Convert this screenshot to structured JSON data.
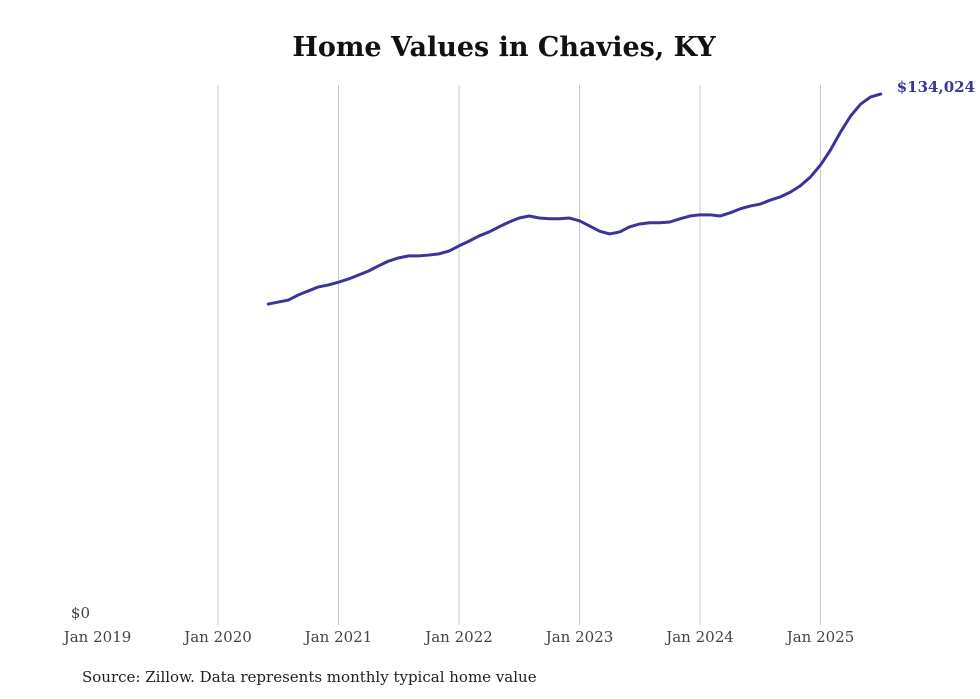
{
  "chart_data": {
    "type": "line",
    "title": "Home Values in Chavies, KY",
    "xlabel": "",
    "ylabel": "",
    "x_ticks": [
      "Jan 2019",
      "Jan 2020",
      "Jan 2021",
      "Jan 2022",
      "Jan 2023",
      "Jan 2024",
      "Jan 2025"
    ],
    "y_ticks": [
      "$0"
    ],
    "ylim": [
      0,
      134024
    ],
    "grid": "vertical",
    "end_label": "$134,024",
    "line_color": "#3b3499",
    "series": [
      {
        "name": "Typical home value",
        "start": "2020-06",
        "frequency": "monthly",
        "values": [
          81300,
          81800,
          82300,
          83600,
          84600,
          85600,
          86100,
          86800,
          87600,
          88600,
          89600,
          90900,
          92100,
          92900,
          93400,
          93400,
          93600,
          93900,
          94600,
          95900,
          97100,
          98400,
          99400,
          100700,
          101900,
          102900,
          103400,
          102900,
          102700,
          102700,
          102900,
          102200,
          100900,
          99600,
          98900,
          99400,
          100700,
          101400,
          101700,
          101700,
          101900,
          102700,
          103400,
          103700,
          103700,
          103400,
          104200,
          105200,
          105900,
          106400,
          107400,
          108200,
          109400,
          111000,
          113200,
          116200,
          120000,
          124500,
          128500,
          131500,
          133300,
          134024
        ]
      }
    ],
    "source": "Source: Zillow. Data represents monthly typical home value"
  }
}
